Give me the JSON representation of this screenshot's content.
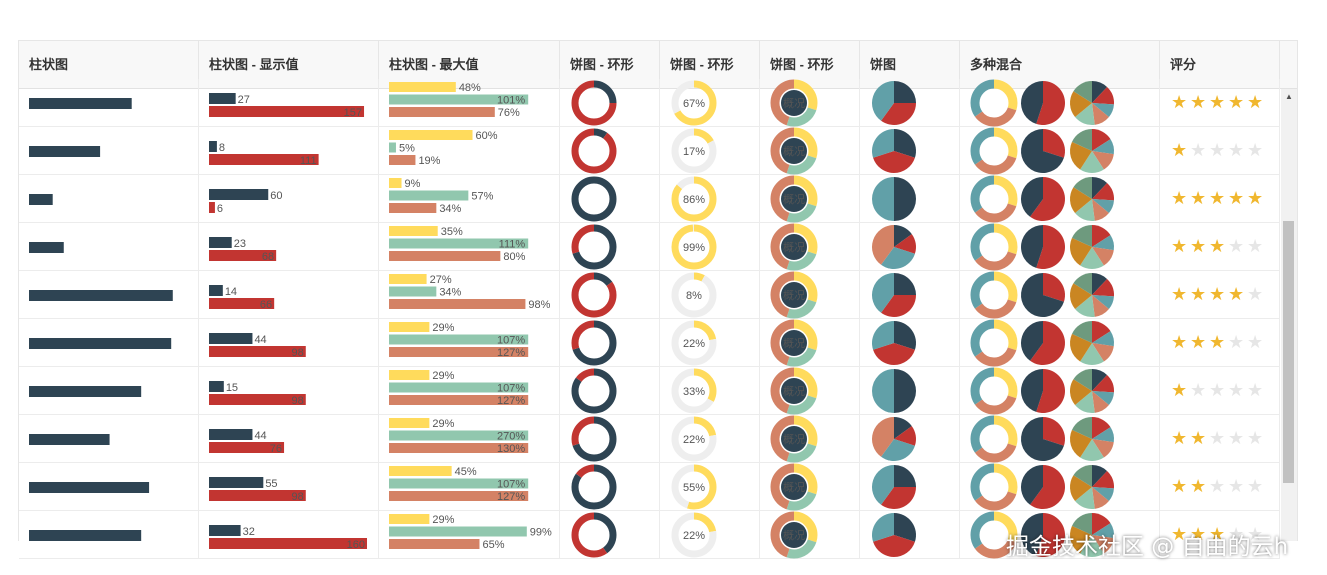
{
  "colors": {
    "dark": "#2e4453",
    "red": "#c23531",
    "teal": "#61a0a8",
    "salmon": "#d48265",
    "mint": "#91c7ae",
    "yellow": "#ffdb5c",
    "orange": "#ca8622",
    "gray": "#eeeeee",
    "star_on": "#f0b72f",
    "star_off": "#e6e6e6"
  },
  "header": [
    "柱状图",
    "柱状图 - 显示值",
    "柱状图 - 最大值",
    "饼图 - 环形",
    "饼图 - 环形",
    "饼图 - 环形",
    "饼图",
    "多种混合",
    "评分"
  ],
  "center_label": "概况",
  "rows": [
    {
      "bar": 0.65,
      "v1": 27,
      "v2": 157,
      "pct": [
        48,
        101,
        76
      ],
      "ring1": 0.25,
      "ring2": 67,
      "ring2_label": "67%",
      "rating": 5
    },
    {
      "bar": 0.45,
      "v1": 8,
      "v2": 111,
      "pct": [
        60,
        5,
        19
      ],
      "ring1": 0.1,
      "ring2": 17,
      "ring2_label": "17%",
      "rating": 1
    },
    {
      "bar": 0.15,
      "v1": 60,
      "v2": 6,
      "pct": [
        9,
        57,
        34
      ],
      "ring1": 1.0,
      "ring2": 86,
      "ring2_label": "86%",
      "rating": 5
    },
    {
      "bar": 0.22,
      "v1": 23,
      "v2": 68,
      "pct": [
        35,
        111,
        80
      ],
      "ring1": 0.7,
      "ring2": 99,
      "ring2_label": "99%",
      "rating": 3
    },
    {
      "bar": 0.91,
      "v1": 14,
      "v2": 66,
      "pct": [
        27,
        34,
        98
      ],
      "ring1": 0.15,
      "ring2": 8,
      "ring2_label": "8%",
      "rating": 4
    },
    {
      "bar": 0.9,
      "v1": 44,
      "v2": 98,
      "pct": [
        29,
        107,
        127
      ],
      "ring1": 0.7,
      "ring2": 22,
      "ring2_label": "22%",
      "rating": 3
    },
    {
      "bar": 0.71,
      "v1": 15,
      "v2": 98,
      "pct": [
        29,
        107,
        127
      ],
      "ring1": 0.85,
      "ring2": 33,
      "ring2_label": "33%",
      "rating": 1
    },
    {
      "bar": 0.51,
      "v1": 44,
      "v2": 76,
      "pct": [
        29,
        270,
        130
      ],
      "ring1": 0.7,
      "ring2": 22,
      "ring2_label": "22%",
      "rating": 2
    },
    {
      "bar": 0.76,
      "v1": 55,
      "v2": 98,
      "pct": [
        45,
        107,
        127
      ],
      "ring1": 0.85,
      "ring2": 55,
      "ring2_label": "55%",
      "rating": 2
    },
    {
      "bar": 0.71,
      "v1": 32,
      "v2": 160,
      "pct": [
        29,
        99,
        65
      ],
      "ring1": 0.4,
      "ring2": 22,
      "ring2_label": "22%",
      "rating": 3
    }
  ],
  "watermark": "掘金技术社区 @ 自由的云h"
}
